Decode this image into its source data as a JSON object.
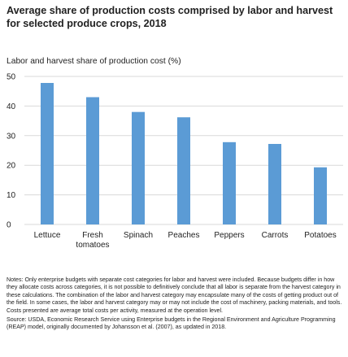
{
  "title_line1": "Average share of production costs comprised by labor and harvest",
  "title_line2": "for selected produce crops, 2018",
  "chart_data": {
    "type": "bar",
    "title": "Average share of production costs comprised by labor and harvest for selected produce crops, 2018",
    "ylabel": "Labor and harvest share of production cost (%)",
    "xlabel": "",
    "categories": [
      [
        "Lettuce"
      ],
      [
        "Fresh",
        "tomatoes"
      ],
      [
        "Spinach"
      ],
      [
        "Peaches"
      ],
      [
        "Peppers"
      ],
      [
        "Carrots"
      ],
      [
        "Potatoes"
      ]
    ],
    "values": [
      47.8,
      43.0,
      38.0,
      36.2,
      27.8,
      27.2,
      19.3
    ],
    "ylim": [
      0,
      50
    ],
    "yticks": [
      0,
      10,
      20,
      30,
      40,
      50
    ],
    "grid": true,
    "bar_color": "#5b9bd5",
    "grid_color": "#d9d9d9"
  },
  "notes": "Notes: Only enterprise budgets with separate cost categories for labor and harvest were included. Because budgets differ in how they allocate costs across categories, it is not possible to definitively conclude that all labor is separate from the harvest category in these calculations. The combination of the labor and harvest category may encapsulate many of the costs of getting product out of the field. In some cases, the labor and harvest category may or may not include the cost of machinery, packing materials, and tools. Costs presented are average total costs per activity, measured at the operation level.",
  "source": "Source: USDA, Economic Research Service using Enterprise budgets in the Regional Environment and Agriculture Programming (REAP) model, originally documented by Johansson et al. (2007), as updated in 2018."
}
